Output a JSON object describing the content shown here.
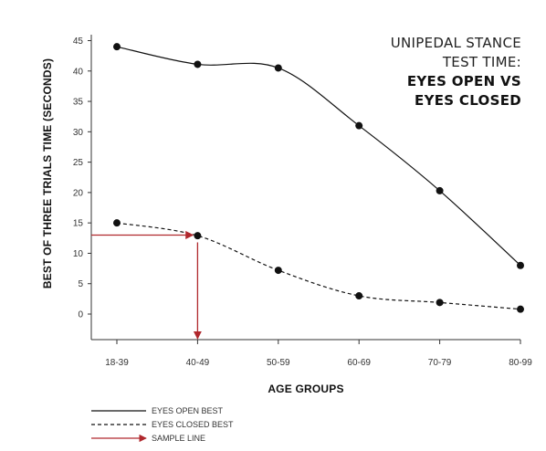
{
  "chart_data": {
    "type": "line",
    "title_lines": [
      "UNIPEDAL STANCE",
      "TEST TIME:"
    ],
    "title_bold_lines": [
      "EYES OPEN VS",
      "EYES CLOSED"
    ],
    "xlabel": "AGE GROUPS",
    "ylabel": "BEST OF THREE TRIALS TIME (SECONDS)",
    "categories": [
      "18-39",
      "40-49",
      "50-59",
      "60-69",
      "70-79",
      "80-99"
    ],
    "yticks": [
      "0",
      "5",
      "10",
      "15",
      "20",
      "25",
      "30",
      "35",
      "40",
      "45"
    ],
    "ylim": [
      -4,
      45
    ],
    "series": [
      {
        "name": "EYES OPEN BEST",
        "style": "solid",
        "values": [
          44,
          41.1,
          40.5,
          31,
          20.3,
          8
        ]
      },
      {
        "name": "EYES CLOSED BEST",
        "style": "dashed",
        "values": [
          15,
          12.9,
          7.2,
          3,
          1.9,
          0.8
        ]
      }
    ],
    "sample_line": {
      "name": "SAMPLE LINE",
      "category": "40-49",
      "value": 13,
      "color": "#b0282d"
    },
    "legend_position": "bottom-left",
    "grid": false
  }
}
